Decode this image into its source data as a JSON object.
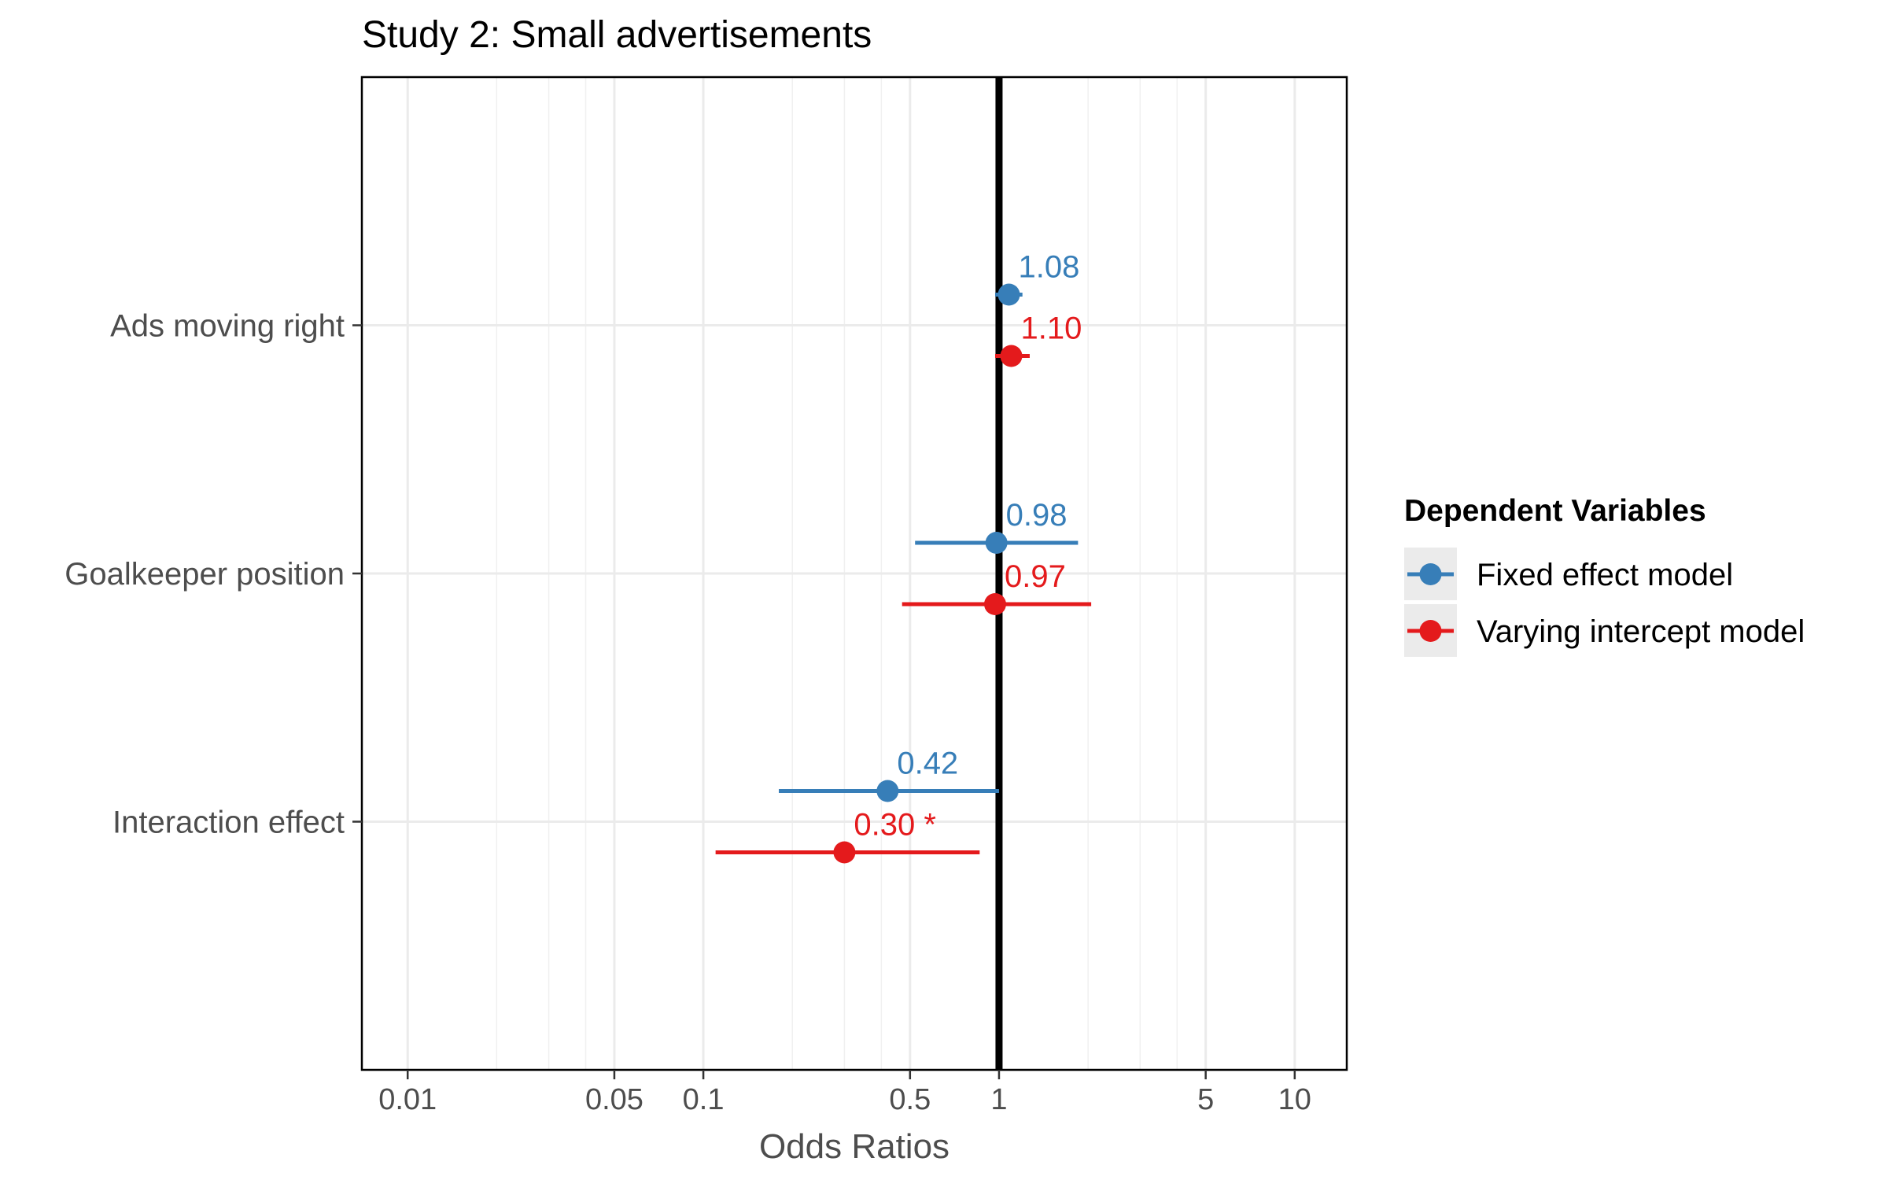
{
  "chart_data": {
    "type": "scatter",
    "title": "Study 2: Small advertisements",
    "xlabel": "Odds Ratios",
    "ylabel": "",
    "x_scale": "log",
    "xlim": [
      0.007,
      15
    ],
    "x_ticks": [
      0.01,
      0.05,
      0.1,
      0.5,
      1,
      5,
      10
    ],
    "x_tick_labels": [
      "0.01",
      "0.05",
      "0.1",
      "0.5",
      "1",
      "5",
      "10"
    ],
    "x_minor_gridlines": [
      0.02,
      0.03,
      0.04,
      0.2,
      0.3,
      0.4,
      2,
      3,
      4
    ],
    "reference_line": 1,
    "grid": true,
    "categories": [
      "Ads moving right",
      "Goalkeeper position",
      "Interaction effect"
    ],
    "legend": {
      "title": "Dependent Variables",
      "position": "right"
    },
    "series": [
      {
        "name": "Fixed effect model",
        "color": "#377eb8",
        "points": [
          {
            "category": "Ads moving right",
            "value": 1.08,
            "ci_low": 0.97,
            "ci_high": 1.2,
            "label": "1.08"
          },
          {
            "category": "Goalkeeper position",
            "value": 0.98,
            "ci_low": 0.52,
            "ci_high": 1.85,
            "label": "0.98"
          },
          {
            "category": "Interaction effect",
            "value": 0.42,
            "ci_low": 0.18,
            "ci_high": 1.0,
            "label": "0.42"
          }
        ]
      },
      {
        "name": "Varying intercept model",
        "color": "#e41a1c",
        "points": [
          {
            "category": "Ads moving right",
            "value": 1.1,
            "ci_low": 0.97,
            "ci_high": 1.27,
            "label": "1.10"
          },
          {
            "category": "Goalkeeper position",
            "value": 0.97,
            "ci_low": 0.47,
            "ci_high": 2.05,
            "label": "0.97"
          },
          {
            "category": "Interaction effect",
            "value": 0.3,
            "ci_low": 0.11,
            "ci_high": 0.86,
            "label": "0.30 *"
          }
        ]
      }
    ]
  }
}
